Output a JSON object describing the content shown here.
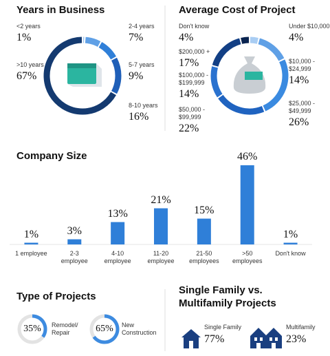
{
  "chart_data": [
    {
      "type": "donut",
      "title": "Years in Business",
      "categories": [
        "<2 years",
        "2-4 years",
        "5-7 years",
        "8-10 years",
        ">10 years"
      ],
      "values": [
        1,
        7,
        9,
        16,
        67
      ],
      "value_labels": [
        "1%",
        "7%",
        "9%",
        "16%",
        "67%"
      ],
      "colors": [
        "#9cc4f0",
        "#5fa0e6",
        "#2f7fd8",
        "#1f5fb8",
        "#143a70"
      ]
    },
    {
      "type": "donut",
      "title": "Average Cost of Project",
      "categories": [
        "Under $10,000",
        "$10,000 - $24,999",
        "$25,000 - $49,999",
        "$50,000 - $99,999",
        "$100,000 - $199,999",
        "$200,000 +",
        "Don't know"
      ],
      "values": [
        4,
        14,
        26,
        22,
        14,
        17,
        4
      ],
      "value_labels": [
        "4%",
        "14%",
        "26%",
        "22%",
        "14%",
        "17%",
        "4%"
      ],
      "colors": [
        "#a9cdf3",
        "#5fa0e6",
        "#3a8ae0",
        "#1f63c0",
        "#2a72cf",
        "#123f85",
        "#0a2450"
      ]
    },
    {
      "type": "bar",
      "title": "Company Size",
      "categories": [
        "1 employee",
        "2-3 employee",
        "4-10 employee",
        "11-20 employee",
        "21-50 employees",
        ">50 employees",
        "Don't know"
      ],
      "values": [
        1,
        3,
        13,
        21,
        15,
        46,
        1
      ],
      "value_labels": [
        "1%",
        "3%",
        "13%",
        "21%",
        "15%",
        "46%",
        "1%"
      ],
      "color": "#2f7fd8",
      "ylim": [
        0,
        50
      ]
    },
    {
      "type": "gauge",
      "title": "Type of Projects",
      "categories": [
        "Remodel/ Repair",
        "New Construction"
      ],
      "values": [
        35,
        65
      ],
      "value_labels": [
        "35%",
        "65%"
      ],
      "color": "#3d8be0"
    },
    {
      "type": "icon",
      "title": "Single Family vs. Multifamily Projects",
      "categories": [
        "Single Family",
        "Multifamily"
      ],
      "values": [
        77,
        23
      ],
      "value_labels": [
        "77%",
        "23%"
      ],
      "color": "#1a3f80"
    }
  ]
}
